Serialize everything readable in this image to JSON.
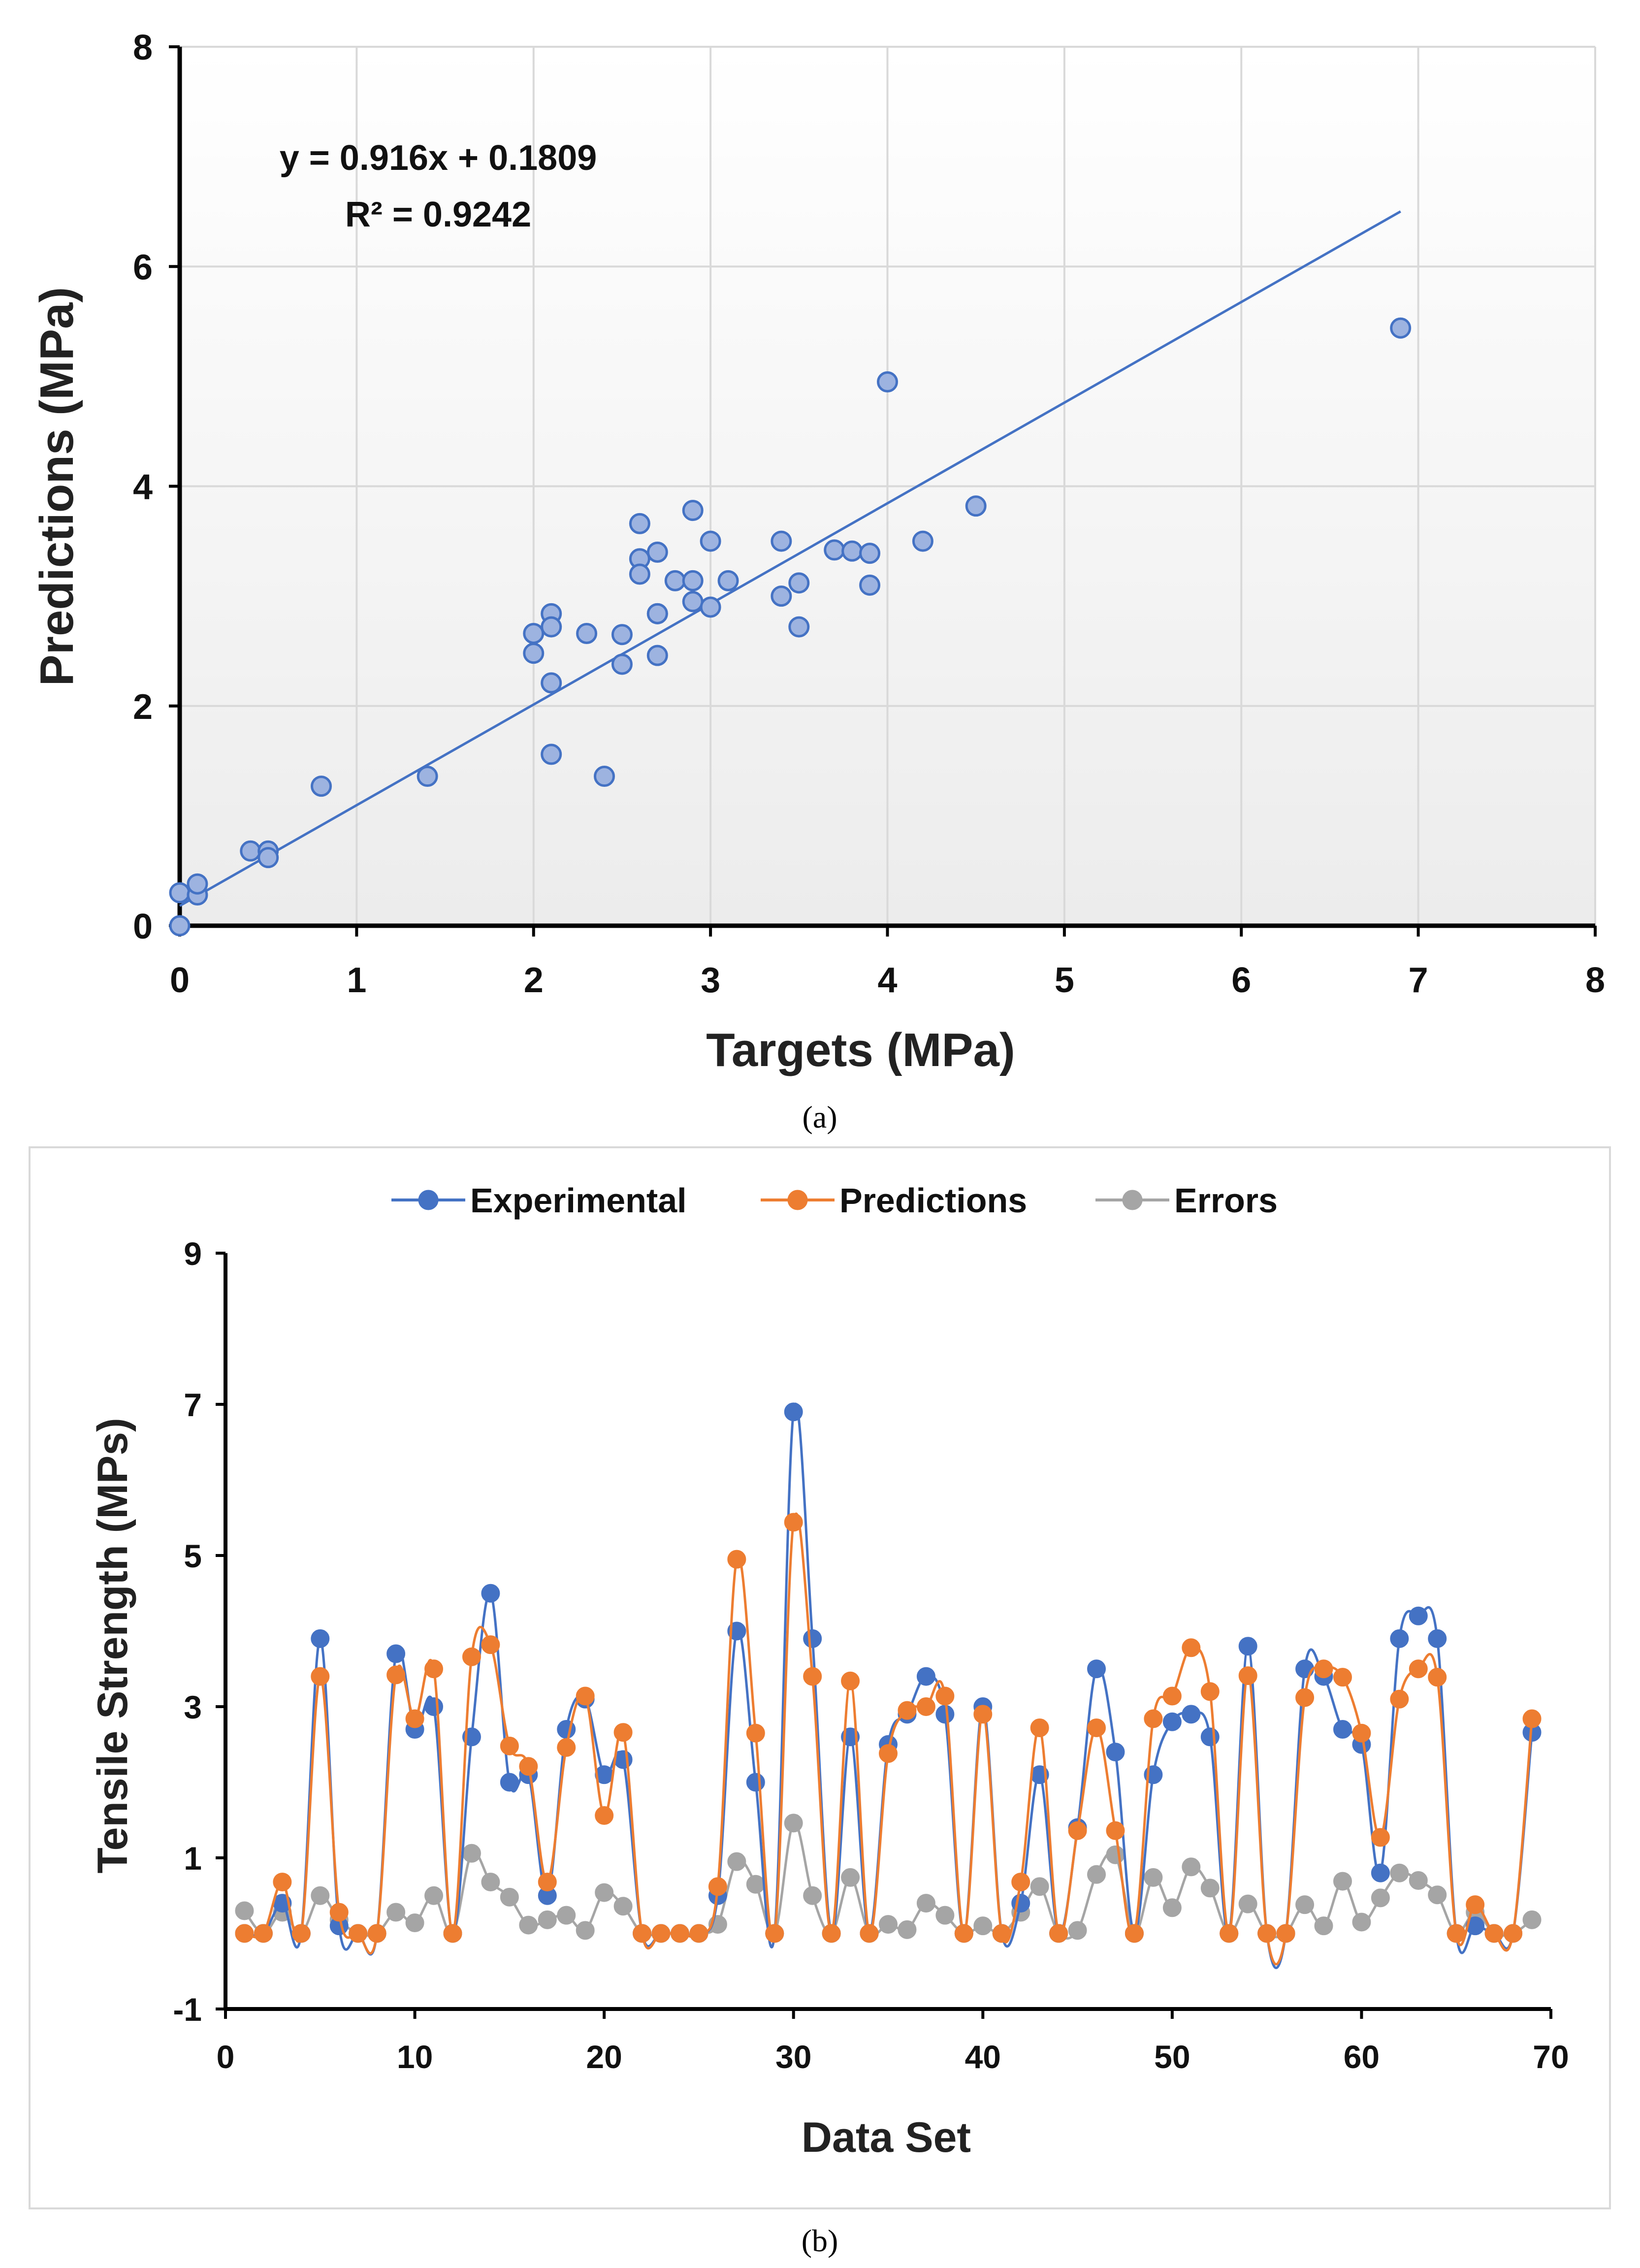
{
  "chart_data": [
    {
      "type": "scatter",
      "panel_label": "(a)",
      "xlabel": "Targets (MPa)",
      "ylabel": "Predictions (MPa)",
      "xlim": [
        0,
        8
      ],
      "ylim": [
        0,
        8
      ],
      "xticks": [
        0,
        1,
        2,
        3,
        4,
        5,
        6,
        7,
        8
      ],
      "yticks": [
        0,
        2,
        4,
        6,
        8
      ],
      "grid": true,
      "trendline": {
        "slope": 0.916,
        "intercept": 0.1809,
        "x_range": [
          0,
          6.9
        ],
        "equation_label": "y = 0.916x + 0.1809",
        "r2_label": "R² = 0.9242"
      },
      "points": {
        "x": [
          0,
          0,
          0.1,
          0.1,
          0.4,
          0.5,
          0.5,
          0.8,
          1.4,
          2.0,
          2.0,
          2.1,
          2.1,
          2.1,
          2.1,
          2.3,
          2.4,
          2.5,
          2.5,
          2.6,
          2.6,
          2.6,
          2.7,
          2.7,
          2.7,
          2.7,
          2.8,
          2.9,
          2.9,
          2.9,
          3.0,
          3.0,
          3.1,
          3.4,
          3.4,
          3.5,
          3.5,
          3.7,
          3.8,
          3.9,
          3.9,
          4.0,
          4.2,
          4.5,
          6.9
        ],
        "y": [
          0.0,
          0.3,
          0.28,
          0.38,
          0.68,
          0.68,
          0.62,
          1.27,
          1.36,
          2.66,
          2.48,
          2.84,
          2.72,
          2.21,
          1.56,
          2.66,
          1.36,
          2.65,
          2.38,
          3.66,
          3.34,
          3.2,
          3.4,
          2.84,
          2.46,
          2.84,
          3.14,
          3.78,
          3.14,
          2.95,
          3.5,
          2.9,
          3.14,
          3.5,
          3.0,
          3.12,
          2.72,
          3.42,
          3.41,
          3.39,
          3.1,
          4.95,
          3.5,
          3.82,
          5.44
        ]
      }
    },
    {
      "type": "line",
      "panel_label": "(b)",
      "xlabel": "Data Set",
      "ylabel": "Tensile Strength (MPs)",
      "xlim": [
        0,
        70
      ],
      "ylim": [
        -1,
        9
      ],
      "xticks": [
        0,
        10,
        20,
        30,
        40,
        50,
        60,
        70
      ],
      "yticks": [
        -1,
        1,
        3,
        5,
        7,
        9
      ],
      "grid": false,
      "legend_position": "top-center",
      "x": [
        1,
        2,
        3,
        4,
        5,
        6,
        7,
        8,
        9,
        10,
        11,
        12,
        13,
        14,
        15,
        16,
        17,
        18,
        19,
        20,
        21,
        22,
        23,
        24,
        25,
        26,
        27,
        28,
        29,
        30,
        31,
        32,
        33,
        34,
        35,
        36,
        37,
        38,
        39,
        40,
        41,
        42,
        43,
        44,
        45,
        46,
        47,
        48,
        49,
        50,
        51,
        52,
        53,
        54,
        55,
        56,
        57,
        58,
        59,
        60,
        61,
        62,
        63,
        64,
        65,
        66,
        67,
        68,
        69
      ],
      "series": [
        {
          "name": "Experimental",
          "color": "#4472C4",
          "values": [
            0,
            0,
            0.4,
            0,
            3.9,
            0.1,
            0,
            0,
            3.7,
            2.7,
            3.0,
            0,
            2.6,
            4.5,
            2.0,
            2.1,
            0.5,
            2.7,
            3.1,
            2.1,
            2.3,
            0,
            0,
            0,
            0,
            0.5,
            4.0,
            2.0,
            0,
            6.9,
            3.9,
            0,
            2.6,
            0,
            2.5,
            2.9,
            3.4,
            2.9,
            0,
            3.0,
            0,
            0.4,
            2.1,
            0,
            1.4,
            3.5,
            2.4,
            0,
            2.1,
            2.8,
            2.9,
            2.6,
            0,
            3.8,
            0,
            0,
            3.5,
            3.4,
            2.7,
            2.5,
            0.8,
            3.9,
            4.2,
            3.9,
            0,
            0.1,
            0,
            0,
            2.66
          ]
        },
        {
          "name": "Predictions",
          "color": "#ED7D31",
          "values": [
            0,
            0,
            0.68,
            0,
            3.4,
            0.28,
            0,
            0,
            3.42,
            2.84,
            3.5,
            0,
            3.66,
            3.82,
            2.48,
            2.21,
            0.68,
            2.46,
            3.14,
            1.56,
            2.66,
            0,
            0,
            0,
            0,
            0.62,
            4.95,
            2.65,
            0,
            5.44,
            3.4,
            0,
            3.34,
            0,
            2.38,
            2.95,
            3.0,
            3.14,
            0,
            2.9,
            0,
            0.68,
            2.72,
            0,
            1.36,
            2.72,
            1.36,
            0,
            2.84,
            3.14,
            3.78,
            3.2,
            0,
            3.41,
            0,
            0,
            3.12,
            3.5,
            3.39,
            2.65,
            1.27,
            3.1,
            3.5,
            3.39,
            0,
            0.38,
            0,
            0,
            2.84
          ]
        },
        {
          "name": "Errors",
          "color": "#A5A5A5",
          "values": [
            0.3,
            0,
            0.28,
            0,
            0.5,
            0.18,
            0,
            0,
            0.28,
            0.14,
            0.5,
            0,
            1.06,
            0.68,
            0.48,
            0.11,
            0.18,
            0.24,
            0.04,
            0.54,
            0.36,
            0,
            0,
            0,
            0,
            0.12,
            0.95,
            0.65,
            0,
            1.46,
            0.5,
            0,
            0.74,
            0,
            0.12,
            0.05,
            0.4,
            0.24,
            0,
            0.1,
            0,
            0.28,
            0.62,
            0,
            0.04,
            0.78,
            1.04,
            0,
            0.74,
            0.34,
            0.88,
            0.6,
            0,
            0.39,
            0,
            0,
            0.38,
            0.1,
            0.69,
            0.15,
            0.47,
            0.8,
            0.7,
            0.51,
            0,
            0.28,
            0,
            0,
            0.18
          ]
        }
      ]
    }
  ]
}
